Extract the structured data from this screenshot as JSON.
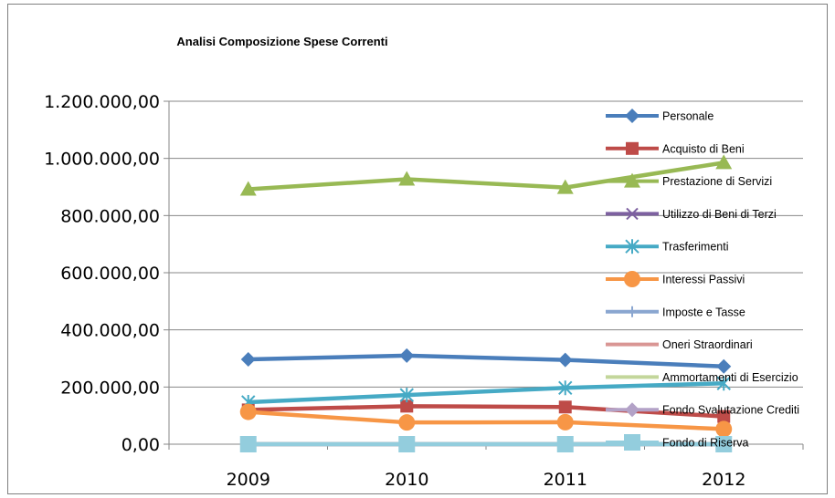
{
  "chart_data": {
    "type": "line",
    "title": "Analisi Composizione Spese Correnti",
    "xlabel": "",
    "ylabel": "",
    "categories": [
      "2009",
      "2010",
      "2011",
      "2012"
    ],
    "ylim": [
      0,
      1200000
    ],
    "yticks": [
      0,
      200000,
      400000,
      600000,
      800000,
      1000000,
      1200000
    ],
    "ytick_labels": [
      "0,00",
      "200.000,00",
      "400.000,00",
      "600.000,00",
      "800.000,00",
      "1.000.000,00",
      "1.200.000,00"
    ],
    "grid": "horizontal",
    "legend_position": "right",
    "series": [
      {
        "name": "Personale",
        "values": [
          297000,
          310000,
          295000,
          272000
        ],
        "color": "#4a7ebb",
        "marker": "diamond"
      },
      {
        "name": "Acquisto di Beni",
        "values": [
          120000,
          133000,
          130000,
          97000
        ],
        "color": "#be4b48",
        "marker": "square"
      },
      {
        "name": "Prestazione di Servizi",
        "values": [
          892000,
          927000,
          898000,
          985000
        ],
        "color": "#98b954",
        "marker": "triangle"
      },
      {
        "name": "Utilizzo di Beni di Terzi",
        "values": [
          0,
          0,
          0,
          0
        ],
        "color": "#7d60a0",
        "marker": "x"
      },
      {
        "name": "Trasferimenti",
        "values": [
          147000,
          172000,
          197000,
          213000
        ],
        "color": "#46aac5",
        "marker": "star"
      },
      {
        "name": "Interessi Passivi",
        "values": [
          113000,
          76000,
          77000,
          53000
        ],
        "color": "#f79646",
        "marker": "circle"
      },
      {
        "name": "Imposte e Tasse",
        "values": [
          0,
          0,
          0,
          0
        ],
        "color": "#8aa6d0",
        "marker": "plus"
      },
      {
        "name": "Oneri Straordinari",
        "values": [
          0,
          0,
          0,
          0
        ],
        "color": "#d99694",
        "marker": "none"
      },
      {
        "name": "Ammortamenti di Esercizio",
        "values": [
          0,
          0,
          0,
          0
        ],
        "color": "#c3d69b",
        "marker": "none"
      },
      {
        "name": "Fondo Svalutazione Crediti",
        "values": [
          0,
          0,
          0,
          0
        ],
        "color": "#b3a2c7",
        "marker": "diamond"
      },
      {
        "name": "Fondo di Riserva",
        "values": [
          0,
          0,
          0,
          0
        ],
        "color": "#93cddd",
        "marker": "bigsquare"
      }
    ]
  }
}
